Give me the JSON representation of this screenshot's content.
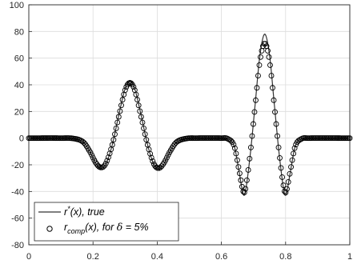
{
  "chart_data": {
    "type": "line",
    "title": "",
    "xlabel": "",
    "ylabel": "",
    "xlim": [
      0,
      1
    ],
    "ylim": [
      -80,
      100
    ],
    "x_ticks": [
      {
        "value": 0,
        "label": "0"
      },
      {
        "value": 0.2,
        "label": "0.2"
      },
      {
        "value": 0.4,
        "label": "0.4"
      },
      {
        "value": 0.6,
        "label": "0.6"
      },
      {
        "value": 0.8,
        "label": "0.8"
      },
      {
        "value": 1,
        "label": "1"
      }
    ],
    "y_ticks": [
      {
        "value": -80,
        "label": "-80"
      },
      {
        "value": -60,
        "label": "-60"
      },
      {
        "value": -40,
        "label": "-40"
      },
      {
        "value": -20,
        "label": "-20"
      },
      {
        "value": 0,
        "label": "0"
      },
      {
        "value": 20,
        "label": "20"
      },
      {
        "value": 40,
        "label": "40"
      },
      {
        "value": 60,
        "label": "60"
      },
      {
        "value": 80,
        "label": "80"
      },
      {
        "value": 100,
        "label": "100"
      }
    ],
    "grid": true,
    "legend_position": "bottom-left",
    "series": [
      {
        "name": "true",
        "style": "line",
        "color": "#333333",
        "points": [
          [
            0,
            0
          ],
          [
            0.1,
            0
          ],
          [
            0.14,
            -0.3
          ],
          [
            0.17,
            -3
          ],
          [
            0.19,
            -10
          ],
          [
            0.21,
            -19.5
          ],
          [
            0.225,
            -22.5
          ],
          [
            0.24,
            -19.5
          ],
          [
            0.26,
            -5
          ],
          [
            0.28,
            17
          ],
          [
            0.3,
            37
          ],
          [
            0.315,
            42.5
          ],
          [
            0.33,
            37
          ],
          [
            0.35,
            17
          ],
          [
            0.37,
            -5
          ],
          [
            0.39,
            -20
          ],
          [
            0.405,
            -23
          ],
          [
            0.42,
            -19.5
          ],
          [
            0.44,
            -10
          ],
          [
            0.46,
            -3
          ],
          [
            0.49,
            -0.3
          ],
          [
            0.52,
            0
          ],
          [
            0.6,
            0
          ],
          [
            0.62,
            -0.5
          ],
          [
            0.64,
            -6
          ],
          [
            0.655,
            -25
          ],
          [
            0.668,
            -42
          ],
          [
            0.675,
            -40
          ],
          [
            0.69,
            -12
          ],
          [
            0.705,
            25
          ],
          [
            0.72,
            62
          ],
          [
            0.735,
            78
          ],
          [
            0.75,
            62
          ],
          [
            0.765,
            25
          ],
          [
            0.78,
            -12
          ],
          [
            0.795,
            -40
          ],
          [
            0.802,
            -42
          ],
          [
            0.815,
            -25
          ],
          [
            0.83,
            -6
          ],
          [
            0.85,
            -0.5
          ],
          [
            0.87,
            0
          ],
          [
            1,
            0
          ]
        ]
      },
      {
        "name": "comp",
        "style": "markers",
        "marker": "circle",
        "color": "#000000",
        "points": [
          [
            0,
            0
          ],
          [
            0.1,
            0
          ],
          [
            0.14,
            -0.3
          ],
          [
            0.17,
            -3
          ],
          [
            0.19,
            -10
          ],
          [
            0.21,
            -19
          ],
          [
            0.225,
            -22
          ],
          [
            0.24,
            -19
          ],
          [
            0.26,
            -5
          ],
          [
            0.28,
            16
          ],
          [
            0.3,
            36
          ],
          [
            0.315,
            41.5
          ],
          [
            0.33,
            36
          ],
          [
            0.35,
            16
          ],
          [
            0.37,
            -5
          ],
          [
            0.39,
            -19.5
          ],
          [
            0.405,
            -22.5
          ],
          [
            0.42,
            -19
          ],
          [
            0.44,
            -10
          ],
          [
            0.46,
            -3
          ],
          [
            0.49,
            -0.3
          ],
          [
            0.52,
            0
          ],
          [
            0.6,
            0
          ],
          [
            0.62,
            -0.5
          ],
          [
            0.64,
            -6
          ],
          [
            0.655,
            -24
          ],
          [
            0.668,
            -40
          ],
          [
            0.675,
            -38
          ],
          [
            0.69,
            -11
          ],
          [
            0.705,
            24
          ],
          [
            0.72,
            58
          ],
          [
            0.735,
            71
          ],
          [
            0.75,
            58
          ],
          [
            0.765,
            24
          ],
          [
            0.78,
            -11
          ],
          [
            0.795,
            -38
          ],
          [
            0.802,
            -40
          ],
          [
            0.815,
            -24
          ],
          [
            0.83,
            -6
          ],
          [
            0.85,
            -0.5
          ],
          [
            0.87,
            0
          ],
          [
            1,
            0
          ]
        ]
      }
    ]
  },
  "legend": {
    "line_label_prefix": "r",
    "line_label_sup": "*",
    "line_label_suffix": "(x), true",
    "marker_label_prefix": "r",
    "marker_label_sub": "comp",
    "marker_label_mid": "(x), for ",
    "marker_label_symbol": "δ",
    "marker_label_tail": " = 5%"
  }
}
